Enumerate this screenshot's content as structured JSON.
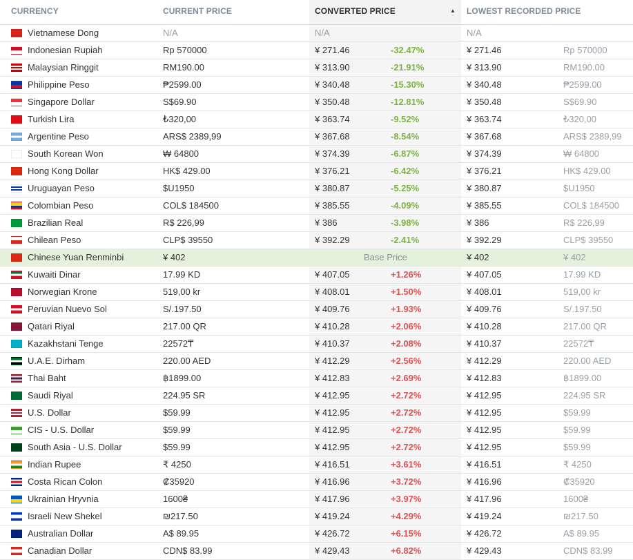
{
  "headers": {
    "currency": "CURRENCY",
    "current_price": "CURRENT PRICE",
    "converted_price": "CONVERTED PRICE",
    "lowest_recorded_price": "LOWEST RECORDED PRICE"
  },
  "sort_icon": "sort-ascending-triangle-icon",
  "rows": [
    {
      "currency": "Vietnamese Dong",
      "current": "N/A",
      "converted": "N/A",
      "pct": "",
      "lowest_converted": "N/A",
      "lowest_local": "",
      "flag": [
        "#da251d"
      ]
    },
    {
      "currency": "Indonesian Rupiah",
      "current": "Rp 570000",
      "converted": "¥ 271.46",
      "pct": "-32.47%",
      "lowest_converted": "¥ 271.46",
      "lowest_local": "Rp 570000",
      "flag": [
        "#ce1126",
        "#ffffff"
      ]
    },
    {
      "currency": "Malaysian Ringgit",
      "current": "RM190.00",
      "converted": "¥ 313.90",
      "pct": "-21.91%",
      "lowest_converted": "¥ 313.90",
      "lowest_local": "RM190.00",
      "flag": [
        "#cc0001",
        "#ffffff",
        "#cc0001",
        "#ffffff",
        "#cc0001"
      ]
    },
    {
      "currency": "Philippine Peso",
      "current": "₱2599.00",
      "converted": "¥ 340.48",
      "pct": "-15.30%",
      "lowest_converted": "¥ 340.48",
      "lowest_local": "₱2599.00",
      "flag": [
        "#0038a8",
        "#ce1126"
      ]
    },
    {
      "currency": "Singapore Dollar",
      "current": "S$69.90",
      "converted": "¥ 350.48",
      "pct": "-12.81%",
      "lowest_converted": "¥ 350.48",
      "lowest_local": "S$69.90",
      "flag": [
        "#ef3340",
        "#ffffff"
      ]
    },
    {
      "currency": "Turkish Lira",
      "current": "₺320,00",
      "converted": "¥ 363.74",
      "pct": "-9.52%",
      "lowest_converted": "¥ 363.74",
      "lowest_local": "₺320,00",
      "flag": [
        "#e30a17"
      ]
    },
    {
      "currency": "Argentine Peso",
      "current": "ARS$ 2389,99",
      "converted": "¥ 367.68",
      "pct": "-8.54%",
      "lowest_converted": "¥ 367.68",
      "lowest_local": "ARS$ 2389,99",
      "flag": [
        "#74acdf",
        "#ffffff",
        "#74acdf"
      ]
    },
    {
      "currency": "South Korean Won",
      "current": "₩ 64800",
      "converted": "¥ 374.39",
      "pct": "-6.87%",
      "lowest_converted": "¥ 374.39",
      "lowest_local": "₩ 64800",
      "flag": [
        "#ffffff"
      ]
    },
    {
      "currency": "Hong Kong Dollar",
      "current": "HK$ 429.00",
      "converted": "¥ 376.21",
      "pct": "-6.42%",
      "lowest_converted": "¥ 376.21",
      "lowest_local": "HK$ 429.00",
      "flag": [
        "#de2910"
      ]
    },
    {
      "currency": "Uruguayan Peso",
      "current": "$U1950",
      "converted": "¥ 380.87",
      "pct": "-5.25%",
      "lowest_converted": "¥ 380.87",
      "lowest_local": "$U1950",
      "flag": [
        "#ffffff",
        "#0038a8",
        "#ffffff",
        "#0038a8",
        "#ffffff"
      ]
    },
    {
      "currency": "Colombian Peso",
      "current": "COL$ 184500",
      "converted": "¥ 385.55",
      "pct": "-4.09%",
      "lowest_converted": "¥ 385.55",
      "lowest_local": "COL$ 184500",
      "flag": [
        "#fcd116",
        "#fcd116",
        "#003893",
        "#ce1126"
      ]
    },
    {
      "currency": "Brazilian Real",
      "current": "R$ 226,99",
      "converted": "¥ 386",
      "pct": "-3.98%",
      "lowest_converted": "¥ 386",
      "lowest_local": "R$ 226,99",
      "flag": [
        "#009c3b"
      ]
    },
    {
      "currency": "Chilean Peso",
      "current": "CLP$ 39550",
      "converted": "¥ 392.29",
      "pct": "-2.41%",
      "lowest_converted": "¥ 392.29",
      "lowest_local": "CLP$ 39550",
      "flag": [
        "#ffffff",
        "#d52b1e"
      ]
    },
    {
      "currency": "Chinese Yuan Renminbi",
      "current": "¥ 402",
      "converted": "",
      "pct": "",
      "base_label": "Base Price",
      "lowest_converted": "¥ 402",
      "lowest_local": "¥ 402",
      "flag": [
        "#de2910"
      ]
    },
    {
      "currency": "Kuwaiti Dinar",
      "current": "17.99 KD",
      "converted": "¥ 407.05",
      "pct": "+1.26%",
      "lowest_converted": "¥ 407.05",
      "lowest_local": "17.99 KD",
      "flag": [
        "#007a3d",
        "#ffffff",
        "#ce1126"
      ]
    },
    {
      "currency": "Norwegian Krone",
      "current": "519,00 kr",
      "converted": "¥ 408.01",
      "pct": "+1.50%",
      "lowest_converted": "¥ 408.01",
      "lowest_local": "519,00 kr",
      "flag": [
        "#ba0c2f"
      ]
    },
    {
      "currency": "Peruvian Nuevo Sol",
      "current": "S/.197.50",
      "converted": "¥ 409.76",
      "pct": "+1.93%",
      "lowest_converted": "¥ 409.76",
      "lowest_local": "S/.197.50",
      "flag": [
        "#d91023",
        "#ffffff",
        "#d91023"
      ]
    },
    {
      "currency": "Qatari Riyal",
      "current": "217.00 QR",
      "converted": "¥ 410.28",
      "pct": "+2.06%",
      "lowest_converted": "¥ 410.28",
      "lowest_local": "217.00 QR",
      "flag": [
        "#8a1538"
      ]
    },
    {
      "currency": "Kazakhstani Tenge",
      "current": "22572₸",
      "converted": "¥ 410.37",
      "pct": "+2.08%",
      "lowest_converted": "¥ 410.37",
      "lowest_local": "22572₸",
      "flag": [
        "#00afca"
      ]
    },
    {
      "currency": "U.A.E. Dirham",
      "current": "220.00 AED",
      "converted": "¥ 412.29",
      "pct": "+2.56%",
      "lowest_converted": "¥ 412.29",
      "lowest_local": "220.00 AED",
      "flag": [
        "#00732f",
        "#ffffff",
        "#000000"
      ]
    },
    {
      "currency": "Thai Baht",
      "current": "฿1899.00",
      "converted": "¥ 412.83",
      "pct": "+2.69%",
      "lowest_converted": "¥ 412.83",
      "lowest_local": "฿1899.00",
      "flag": [
        "#a51931",
        "#f4f5f8",
        "#2d2a4a",
        "#2d2a4a",
        "#f4f5f8",
        "#a51931"
      ]
    },
    {
      "currency": "Saudi Riyal",
      "current": "224.95 SR",
      "converted": "¥ 412.95",
      "pct": "+2.72%",
      "lowest_converted": "¥ 412.95",
      "lowest_local": "224.95 SR",
      "flag": [
        "#006c35"
      ]
    },
    {
      "currency": "U.S. Dollar",
      "current": "$59.99",
      "converted": "¥ 412.95",
      "pct": "+2.72%",
      "lowest_converted": "¥ 412.95",
      "lowest_local": "$59.99",
      "flag": [
        "#b22234",
        "#ffffff",
        "#b22234",
        "#ffffff",
        "#b22234"
      ]
    },
    {
      "currency": "CIS - U.S. Dollar",
      "current": "$59.99",
      "converted": "¥ 412.95",
      "pct": "+2.72%",
      "lowest_converted": "¥ 412.95",
      "lowest_local": "$59.99",
      "flag": [
        "#3f9c35",
        "#ffffff"
      ]
    },
    {
      "currency": "South Asia - U.S. Dollar",
      "current": "$59.99",
      "converted": "¥ 412.95",
      "pct": "+2.72%",
      "lowest_converted": "¥ 412.95",
      "lowest_local": "$59.99",
      "flag": [
        "#01411c"
      ]
    },
    {
      "currency": "Indian Rupee",
      "current": "₹ 4250",
      "converted": "¥ 416.51",
      "pct": "+3.61%",
      "lowest_converted": "¥ 416.51",
      "lowest_local": "₹ 4250",
      "flag": [
        "#ff9933",
        "#ffffff",
        "#138808"
      ]
    },
    {
      "currency": "Costa Rican Colon",
      "current": "₡35920",
      "converted": "¥ 416.96",
      "pct": "+3.72%",
      "lowest_converted": "¥ 416.96",
      "lowest_local": "₡35920",
      "flag": [
        "#002b7f",
        "#ffffff",
        "#ce1126",
        "#ce1126",
        "#ffffff",
        "#002b7f"
      ]
    },
    {
      "currency": "Ukrainian Hryvnia",
      "current": "1600₴",
      "converted": "¥ 417.96",
      "pct": "+3.97%",
      "lowest_converted": "¥ 417.96",
      "lowest_local": "1600₴",
      "flag": [
        "#0057b7",
        "#ffd700"
      ]
    },
    {
      "currency": "Israeli New Shekel",
      "current": "₪217.50",
      "converted": "¥ 419.24",
      "pct": "+4.29%",
      "lowest_converted": "¥ 419.24",
      "lowest_local": "₪217.50",
      "flag": [
        "#0038b8",
        "#ffffff",
        "#ffffff",
        "#0038b8"
      ]
    },
    {
      "currency": "Australian Dollar",
      "current": "A$ 89.95",
      "converted": "¥ 426.72",
      "pct": "+6.15%",
      "lowest_converted": "¥ 426.72",
      "lowest_local": "A$ 89.95",
      "flag": [
        "#00247d"
      ]
    },
    {
      "currency": "Canadian Dollar",
      "current": "CDN$ 83.99",
      "converted": "¥ 429.43",
      "pct": "+6.82%",
      "lowest_converted": "¥ 429.43",
      "lowest_local": "CDN$ 83.99",
      "flag": [
        "#d52b1e",
        "#ffffff",
        "#ffffff",
        "#d52b1e"
      ]
    }
  ]
}
